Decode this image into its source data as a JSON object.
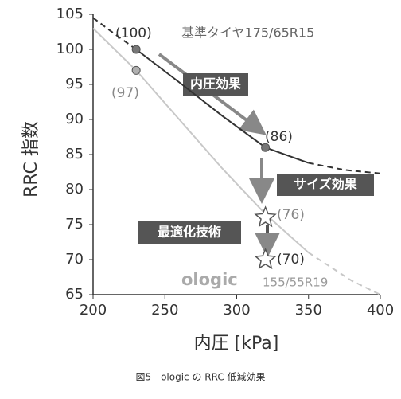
{
  "chart_data": {
    "type": "line",
    "xlabel": "内圧 [kPa]",
    "ylabel": "RRC 指数",
    "caption": "図5　ologic の RRC 低減効果",
    "xlim": [
      200,
      400
    ],
    "xticks": [
      200,
      250,
      300,
      350,
      400
    ],
    "ylim": [
      65,
      105
    ],
    "yticks": [
      65,
      70,
      75,
      80,
      85,
      90,
      95,
      100,
      105
    ],
    "series": [
      {
        "color": "#333333",
        "dashed": true,
        "x": [
          200,
          215,
          230
        ],
        "values": [
          104.5,
          102.2,
          100
        ]
      },
      {
        "color": "#333333",
        "dashed": false,
        "x": [
          230,
          260,
          290,
          320,
          350
        ],
        "values": [
          100,
          95.3,
          90.5,
          86,
          83.8
        ]
      },
      {
        "color": "#333333",
        "dashed": true,
        "x": [
          350,
          375,
          400
        ],
        "values": [
          83.8,
          82.8,
          82.3
        ]
      },
      {
        "color": "#c8c8c8",
        "dashed": false,
        "x": [
          200,
          230,
          260,
          290,
          320,
          350
        ],
        "values": [
          103,
          97,
          90,
          83,
          76.5,
          71
        ]
      },
      {
        "color": "#c8c8c8",
        "dashed": true,
        "x": [
          350,
          380,
          400
        ],
        "values": [
          71,
          67,
          65
        ]
      }
    ],
    "points": [
      {
        "x": 230,
        "y": 100,
        "label": "(100)",
        "shape": "circle",
        "color": "#777777"
      },
      {
        "x": 230,
        "y": 97,
        "label": "(97)",
        "shape": "circle",
        "color": "#b0b0b0"
      },
      {
        "x": 320,
        "y": 86,
        "label": "(86)",
        "shape": "circle",
        "color": "#777777"
      },
      {
        "x": 320,
        "y": 76,
        "label": "(76)",
        "shape": "star",
        "color": "#ffffff"
      },
      {
        "x": 320,
        "y": 70,
        "label": "(70)",
        "shape": "star",
        "color": "#ffffff"
      }
    ],
    "annotations": [
      "基準タイヤ175/65R15",
      "内圧効果",
      "サイズ効果",
      "最適化技術",
      "ologic",
      "155/55R19"
    ]
  }
}
